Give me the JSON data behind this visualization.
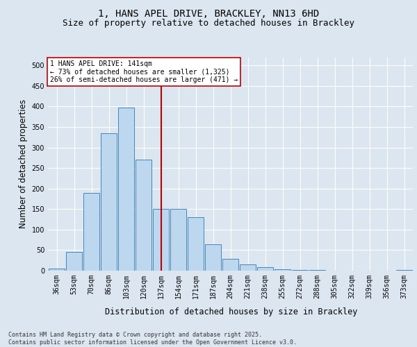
{
  "title_line1": "1, HANS APEL DRIVE, BRACKLEY, NN13 6HD",
  "title_line2": "Size of property relative to detached houses in Brackley",
  "xlabel": "Distribution of detached houses by size in Brackley",
  "ylabel": "Number of detached properties",
  "categories": [
    "36sqm",
    "53sqm",
    "70sqm",
    "86sqm",
    "103sqm",
    "120sqm",
    "137sqm",
    "154sqm",
    "171sqm",
    "187sqm",
    "204sqm",
    "221sqm",
    "238sqm",
    "255sqm",
    "272sqm",
    "288sqm",
    "305sqm",
    "322sqm",
    "339sqm",
    "356sqm",
    "373sqm"
  ],
  "values": [
    5,
    45,
    190,
    335,
    398,
    270,
    150,
    150,
    130,
    65,
    28,
    15,
    8,
    4,
    2,
    1,
    0,
    0,
    0,
    0,
    2
  ],
  "bar_color": "#bdd7ee",
  "bar_edge_color": "#2e75b6",
  "vline_x_index": 6,
  "vline_color": "#c00000",
  "annotation_text": "1 HANS APEL DRIVE: 141sqm\n← 73% of detached houses are smaller (1,325)\n26% of semi-detached houses are larger (471) →",
  "annotation_box_color": "#ffffff",
  "annotation_box_edge_color": "#c00000",
  "footer_text": "Contains HM Land Registry data © Crown copyright and database right 2025.\nContains public sector information licensed under the Open Government Licence v3.0.",
  "ylim": [
    0,
    520
  ],
  "yticks": [
    0,
    50,
    100,
    150,
    200,
    250,
    300,
    350,
    400,
    450,
    500
  ],
  "background_color": "#dce6f1",
  "plot_bg_color": "#dce6f1",
  "grid_color": "#ffffff",
  "title_fontsize": 10,
  "subtitle_fontsize": 9,
  "tick_fontsize": 7,
  "label_fontsize": 8.5,
  "annotation_fontsize": 7,
  "footer_fontsize": 6
}
